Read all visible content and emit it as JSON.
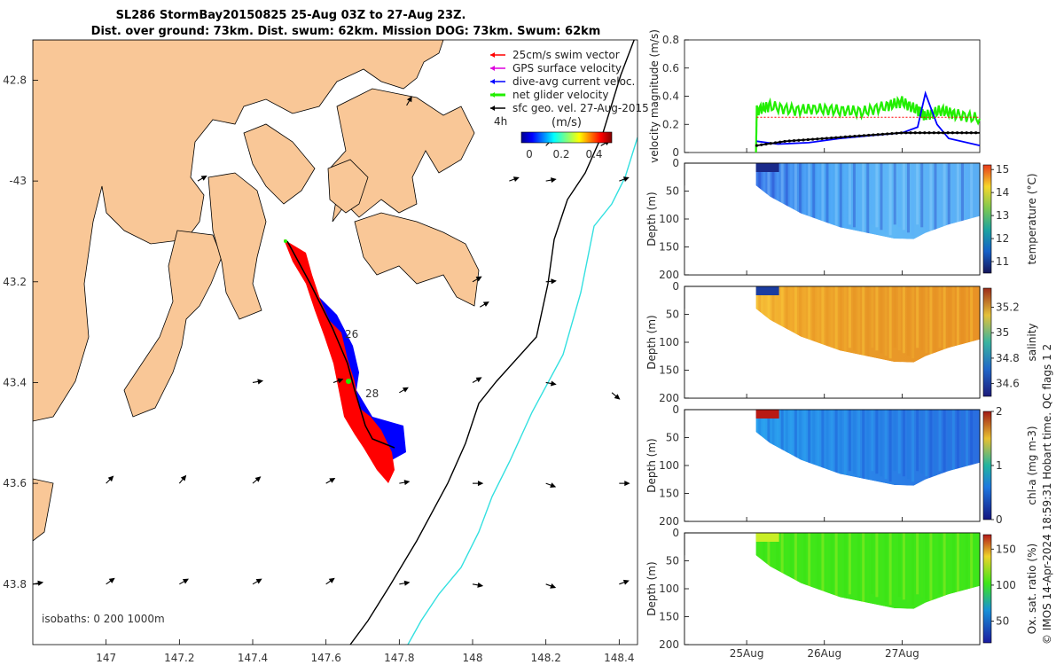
{
  "title": {
    "line1": "SL286 StormBay20150825 25-Aug 03Z to 27-Aug 23Z.",
    "line2": "Dist. over ground: 73km. Dist. swum: 62km. Mission DOG: 73km. Swum: 62km"
  },
  "colors": {
    "land": "#f9c797",
    "swim": "#ff0000",
    "gps": "#dd00dd",
    "current": "#0000ff",
    "net": "#22ee00",
    "sfc": "#000000",
    "isobath200": "#000000",
    "isobath1000": "#33e0e0"
  },
  "map": {
    "xlim": [
      146.8,
      148.45
    ],
    "ylim": [
      -43.92,
      -42.72
    ],
    "xticks": [
      147,
      147.2,
      147.4,
      147.6,
      147.8,
      148,
      148.2,
      148.4
    ],
    "xtick_labels": [
      "147",
      "147.2",
      "147.4",
      "147.6",
      "147.8",
      "148",
      "148.2",
      "148.4"
    ],
    "yticks": [
      -42.8,
      -43,
      -43.2,
      -43.4,
      -43.6,
      -43.8
    ],
    "ytick_labels": [
      "42.8",
      "-43",
      "43.2",
      "43.4",
      "43.6",
      "43.8"
    ],
    "legend": {
      "items": [
        {
          "label": "25cm/s swim vector",
          "color": "#ff0000"
        },
        {
          "label": "GPS surface velocity",
          "color": "#dd00dd"
        },
        {
          "label": "dive-avg current veloc.",
          "color": "#0000ff"
        },
        {
          "label": "net glider velocity",
          "color": "#22ee00"
        },
        {
          "label": "sfc geo. vel. 27-Aug-2015",
          "color": "#000000"
        }
      ],
      "time_label": "4h",
      "colorbar_label": "(m/s)",
      "colorbar_ticks": [
        "0",
        "0.2",
        "0.4"
      ]
    },
    "day_labels": [
      {
        "text": "26",
        "lon": 147.63,
        "lat": -43.34
      },
      {
        "text": "28",
        "lon": 147.69,
        "lat": -43.425
      }
    ],
    "isobaths_label": "isobaths: 0   200  1000m"
  },
  "chart_data": [
    {
      "type": "line",
      "title": "velocity magnitude",
      "ylabel": "velocity magnitude (m/s)",
      "ylim": [
        0,
        0.8
      ],
      "yticks": [
        0,
        0.2,
        0.4,
        0.6,
        0.8
      ],
      "xlim": [
        24.2,
        28.0
      ],
      "series": [
        {
          "name": "net glider velocity",
          "color": "#22ee00",
          "x": [
            25.12,
            25.13,
            25.3,
            25.6,
            25.9,
            26.2,
            26.5,
            26.8,
            27.0,
            27.2,
            27.3,
            27.5,
            27.7,
            28.0
          ],
          "y": [
            0.0,
            0.3,
            0.33,
            0.3,
            0.31,
            0.3,
            0.29,
            0.33,
            0.36,
            0.3,
            0.26,
            0.3,
            0.27,
            0.24
          ]
        },
        {
          "name": "dive-avg current",
          "color": "#0000ff",
          "x": [
            25.13,
            25.4,
            25.8,
            26.2,
            26.6,
            27.0,
            27.2,
            27.3,
            27.45,
            27.6,
            28.0
          ],
          "y": [
            0.08,
            0.06,
            0.07,
            0.1,
            0.12,
            0.14,
            0.18,
            0.42,
            0.2,
            0.1,
            0.05
          ]
        },
        {
          "name": "sfc geo. vel.",
          "color": "#000000",
          "x": [
            25.13,
            25.5,
            26.0,
            26.5,
            27.0,
            28.0
          ],
          "y": [
            0.05,
            0.08,
            0.1,
            0.12,
            0.14,
            0.14
          ]
        },
        {
          "name": "swim vector",
          "color": "#ff0000",
          "x": [
            25.13,
            28.0
          ],
          "y": [
            0.25,
            0.25
          ]
        }
      ]
    },
    {
      "type": "heatmap",
      "title": "temperature",
      "ylabel": "Depth (m)",
      "cbar_label": "temperature (°C)",
      "ylim": [
        200,
        0
      ],
      "clim": [
        10.5,
        15.2
      ],
      "cbar_ticks": [
        11,
        12,
        13,
        14,
        15
      ],
      "colors": [
        "#1f34c4",
        "#5ab0ff",
        "#9fd6ff"
      ]
    },
    {
      "type": "heatmap",
      "title": "salinity",
      "ylabel": "Depth (m)",
      "cbar_label": "salinity",
      "ylim": [
        200,
        0
      ],
      "clim": [
        34.5,
        35.35
      ],
      "cbar_ticks": [
        34.6,
        34.8,
        35,
        35.2
      ],
      "colors": [
        "#e59020",
        "#f4b12e",
        "#ffd740"
      ]
    },
    {
      "type": "heatmap",
      "title": "chl-a",
      "ylabel": "Depth (m)",
      "cbar_label": "chl-a (mg m-3)",
      "ylim": [
        200,
        0
      ],
      "clim": [
        0,
        2
      ],
      "cbar_ticks": [
        0,
        1,
        2
      ],
      "colors": [
        "#1e7be0",
        "#2fa8f0",
        "#174bd2"
      ]
    },
    {
      "type": "heatmap",
      "title": "oxygen saturation",
      "ylabel": "Depth (m)",
      "cbar_label": "Ox. sat. ratio (%)",
      "ylim": [
        200,
        0
      ],
      "clim": [
        20,
        170
      ],
      "cbar_ticks": [
        50,
        100,
        150
      ],
      "colors": [
        "#47e616",
        "#39e010",
        "#c9ee26"
      ]
    }
  ],
  "profile_axis": {
    "depth_ticks": [
      "0",
      "50",
      "100",
      "150",
      "200"
    ],
    "time_ticks": [
      "25Aug",
      "26Aug",
      "27Aug"
    ],
    "time_values": [
      25,
      26,
      27
    ]
  },
  "footer": "© IMOS 14-Apr-2024 18:59:31 Hobart time. QC flags 1  2"
}
